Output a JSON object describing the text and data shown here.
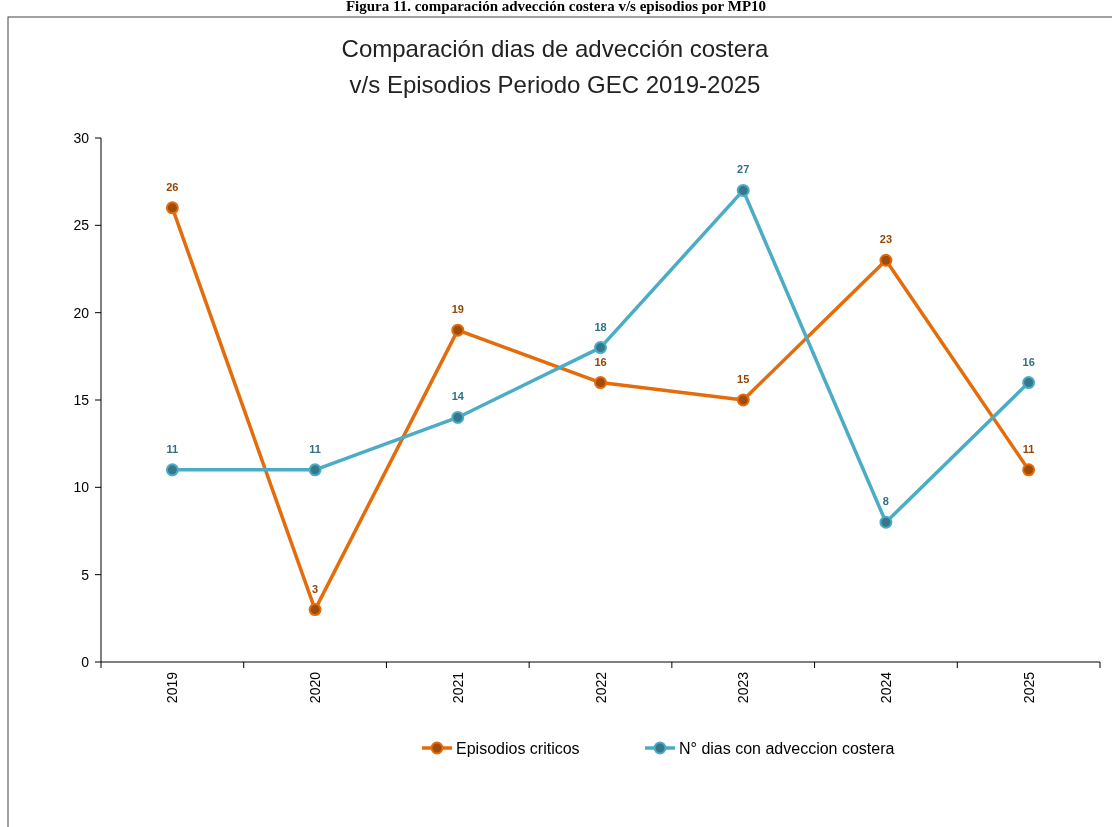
{
  "chart_data": {
    "type": "line",
    "title": "Figura 11. comparación advección costera v/s episodios por MP10",
    "subtitle": "Comparación dias de advección costera\nv/s  Episodios Periodo GEC 2019-2025",
    "categories": [
      "2019",
      "2020",
      "2021",
      "2022",
      "2023",
      "2024",
      "2025"
    ],
    "series": [
      {
        "name": "Episodios criticos",
        "color": "#e46c0a",
        "values": [
          26,
          3,
          19,
          16,
          15,
          23,
          11
        ]
      },
      {
        "name": "N° dias con adveccion costera",
        "color": "#4bacc6",
        "values": [
          11,
          11,
          14,
          18,
          27,
          8,
          16
        ]
      }
    ],
    "ylim": [
      0,
      30
    ],
    "yticks": [
      0,
      5,
      10,
      15,
      20,
      25,
      30
    ],
    "marker": "circle",
    "data_labels": true,
    "legend": "bottom",
    "grid": false
  }
}
